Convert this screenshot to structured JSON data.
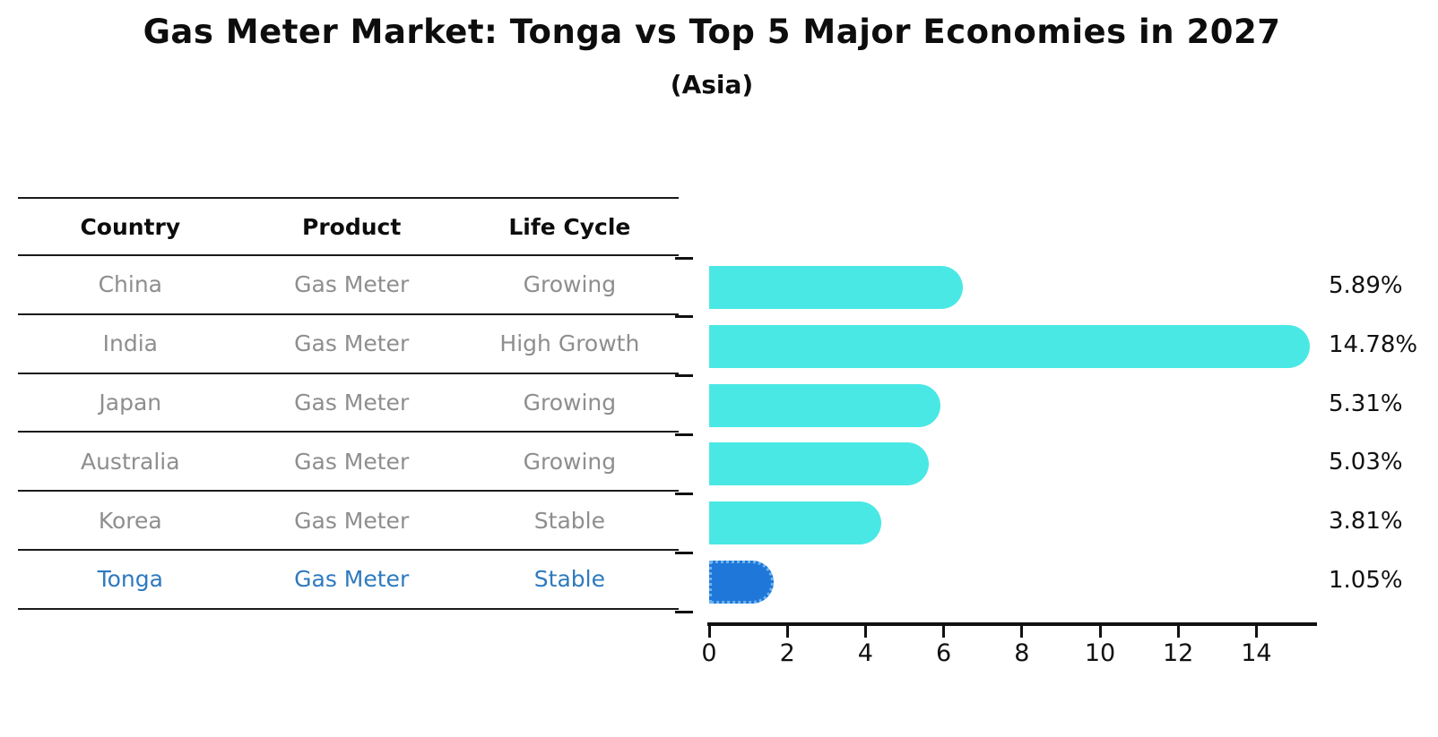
{
  "title": "Gas Meter Market: Tonga vs Top 5 Major Economies in 2027",
  "subtitle": "(Asia)",
  "table": {
    "headers": [
      "Country",
      "Product",
      "Life Cycle"
    ],
    "rows": [
      {
        "country": "China",
        "product": "Gas Meter",
        "life_cycle": "Growing",
        "highlight": false
      },
      {
        "country": "India",
        "product": "Gas Meter",
        "life_cycle": "High Growth",
        "highlight": false
      },
      {
        "country": "Japan",
        "product": "Gas Meter",
        "life_cycle": "Growing",
        "highlight": false
      },
      {
        "country": "Australia",
        "product": "Gas Meter",
        "life_cycle": "Growing",
        "highlight": false
      },
      {
        "country": "Korea",
        "product": "Gas Meter",
        "life_cycle": "Stable",
        "highlight": false
      },
      {
        "country": "Tonga",
        "product": "Gas Meter",
        "life_cycle": "Stable",
        "highlight": true
      }
    ]
  },
  "chart_data": {
    "type": "bar",
    "orientation": "horizontal",
    "title": "Gas Meter Market: Tonga vs Top 5 Major Economies in 2027",
    "subtitle": "(Asia)",
    "categories": [
      "China",
      "India",
      "Japan",
      "Australia",
      "Korea",
      "Tonga"
    ],
    "values": [
      5.89,
      14.78,
      5.31,
      5.03,
      3.81,
      1.05
    ],
    "value_labels": [
      "5.89%",
      "14.78%",
      "5.31%",
      "5.03%",
      "3.81%",
      "1.05%"
    ],
    "units": "%",
    "xlabel": "",
    "ylabel": "",
    "xlim": [
      0,
      15.6
    ],
    "x_ticks": [
      0,
      2,
      4,
      6,
      8,
      10,
      12,
      14
    ],
    "grid": false,
    "legend": false,
    "highlight_index": 5,
    "bar_color": "#4ae8e4",
    "highlight_bar_color": "#1f78d9",
    "highlight_text_color": "#2e7abf",
    "text_color": "#111111",
    "muted_text_color": "#8e8e8e"
  }
}
